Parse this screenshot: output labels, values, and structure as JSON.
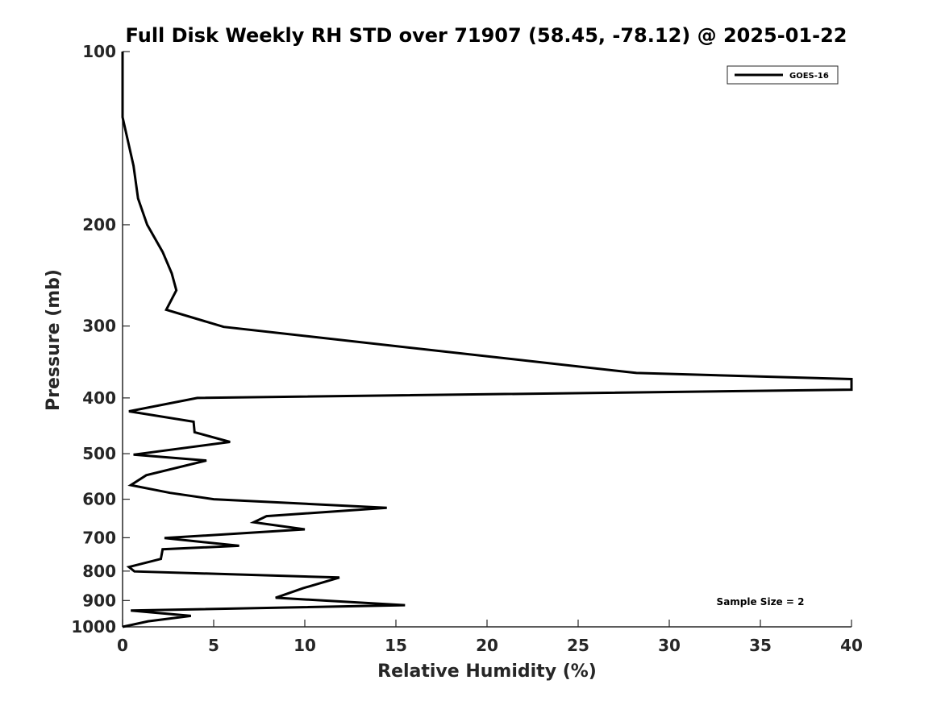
{
  "chart_data": {
    "type": "line",
    "title": "Full Disk Weekly RH STD over 71907 (58.45, -78.12) @ 2025-01-22",
    "xlabel": "Relative Humidity (%)",
    "ylabel": "Pressure (mb)",
    "xlim": [
      0,
      40
    ],
    "ylim": [
      100,
      1000
    ],
    "yscale": "log",
    "reversed_y": true,
    "grid": false,
    "legend_position": "top-right",
    "x_ticks": [
      0,
      5,
      10,
      15,
      20,
      25,
      30,
      35,
      40
    ],
    "y_ticks": [
      100,
      200,
      300,
      400,
      500,
      600,
      700,
      800,
      900,
      1000
    ],
    "annotation": "Sample Size = 2",
    "series": [
      {
        "name": "GOES-16",
        "color": "#000000",
        "points": [
          [
            0,
            100
          ],
          [
            0,
            130
          ],
          [
            0.6,
            158
          ],
          [
            0.85,
            180
          ],
          [
            1.35,
            200
          ],
          [
            2.2,
            223
          ],
          [
            2.7,
            243
          ],
          [
            2.95,
            260
          ],
          [
            2.4,
            281
          ],
          [
            5.55,
            301
          ],
          [
            28.2,
            362
          ],
          [
            40,
            371
          ],
          [
            40,
            387
          ],
          [
            4.1,
            400
          ],
          [
            0.35,
            422
          ],
          [
            3.9,
            440
          ],
          [
            3.95,
            459
          ],
          [
            5.9,
            477
          ],
          [
            0.6,
            502
          ],
          [
            4.6,
            514
          ],
          [
            1.3,
            545
          ],
          [
            0.45,
            567
          ],
          [
            2.6,
            585
          ],
          [
            5.0,
            600
          ],
          [
            14.5,
            621
          ],
          [
            7.9,
            642
          ],
          [
            7.2,
            658
          ],
          [
            10.0,
            677
          ],
          [
            2.3,
            701
          ],
          [
            6.4,
            723
          ],
          [
            2.2,
            733
          ],
          [
            2.1,
            762
          ],
          [
            0.35,
            787
          ],
          [
            0.65,
            801
          ],
          [
            11.9,
            821
          ],
          [
            9.9,
            857
          ],
          [
            8.4,
            890
          ],
          [
            15.5,
            917
          ],
          [
            0.45,
            937
          ],
          [
            3.75,
            957
          ],
          [
            1.4,
            978
          ],
          [
            0,
            1000
          ]
        ]
      }
    ]
  }
}
